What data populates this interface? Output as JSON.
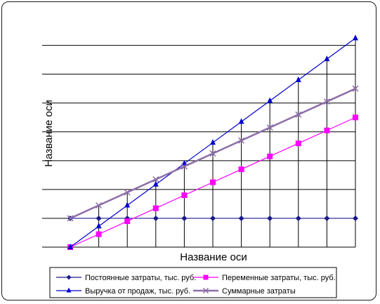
{
  "chart_data": {
    "type": "line",
    "xlabel": "Название оси",
    "ylabel": "Название оси",
    "x": [
      0,
      1,
      2,
      3,
      4,
      5,
      6,
      7,
      8,
      9,
      10
    ],
    "ylim": [
      0,
      1520
    ],
    "ygrid": [
      0,
      200,
      400,
      600,
      800,
      1000,
      1200,
      1400
    ],
    "series": [
      {
        "name": "Постоянные затраты, тыс. руб.",
        "color": "#1a1a8c",
        "marker": "diamond",
        "values": [
          200,
          200,
          200,
          200,
          200,
          200,
          200,
          200,
          200,
          200,
          200
        ]
      },
      {
        "name": "Переменные затраты, тыс. руб.",
        "color": "#ff00ff",
        "marker": "square",
        "values": [
          0,
          90,
          180,
          270,
          360,
          450,
          540,
          630,
          720,
          810,
          900
        ]
      },
      {
        "name": "Выручка от продаж, тыс. руб.",
        "color": "#0000cc",
        "marker": "triangle",
        "values": [
          0,
          145,
          290,
          435,
          580,
          725,
          870,
          1015,
          1160,
          1305,
          1450
        ]
      },
      {
        "name": "Суммарные затраты",
        "color": "#8c6ea8",
        "marker": "x",
        "values": [
          200,
          290,
          380,
          470,
          560,
          650,
          740,
          830,
          920,
          1010,
          1100
        ]
      }
    ],
    "legend_position": "bottom"
  }
}
